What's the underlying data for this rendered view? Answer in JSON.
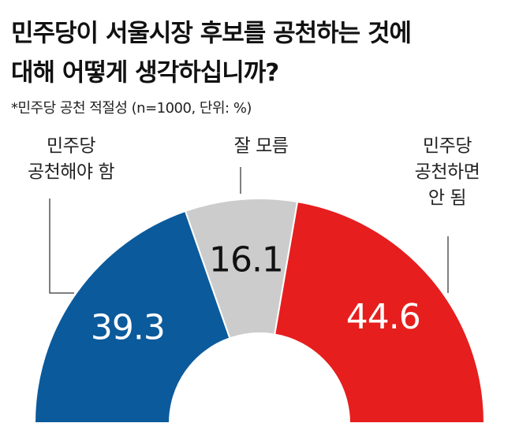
{
  "chart_data": {
    "type": "pie",
    "title": [
      "민주당이 서울시장 후보를 공천하는 것에",
      "대해 어떻게 생각하십니까?"
    ],
    "subtitle": "*민주당 공천 적절성 (n=1000, 단위: %)",
    "categories": [
      [
        "민주당",
        "공천해야 함"
      ],
      [
        "잘 모름"
      ],
      [
        "민주당",
        "공천하면",
        "안 됨"
      ]
    ],
    "values": [
      39.3,
      16.1,
      44.6
    ],
    "colors": [
      "#0b5a9c",
      "#cccccc",
      "#e61e1e"
    ]
  }
}
